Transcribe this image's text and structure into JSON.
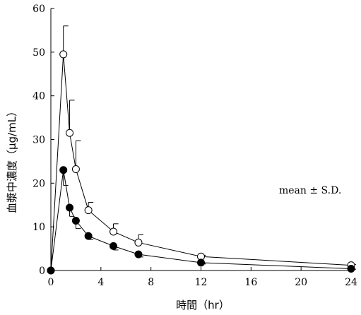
{
  "chart_data": {
    "type": "line",
    "xlabel": "時間（hr）",
    "ylabel": "血漿中濃度（μg/mL）",
    "xlim": [
      0,
      24
    ],
    "ylim": [
      0,
      60
    ],
    "xticks": [
      0,
      4,
      8,
      12,
      16,
      20,
      24
    ],
    "yticks": [
      0,
      10,
      20,
      30,
      40,
      50,
      60
    ],
    "grid": false,
    "annotation": "mean ± S.D.",
    "series": [
      {
        "marker": "open-circle",
        "points": [
          {
            "x": 0,
            "y": 0,
            "sd": 0
          },
          {
            "x": 1,
            "y": 49.5,
            "sd": 6.5
          },
          {
            "x": 1.5,
            "y": 31.5,
            "sd": 7.5
          },
          {
            "x": 2,
            "y": 23.2,
            "sd": 6.5
          },
          {
            "x": 3,
            "y": 13.8,
            "sd": 1.8
          },
          {
            "x": 5,
            "y": 8.9,
            "sd": 1.8
          },
          {
            "x": 7,
            "y": 6.4,
            "sd": 1.8
          },
          {
            "x": 12,
            "y": 3.2,
            "sd": 0.3
          },
          {
            "x": 24,
            "y": 1.2,
            "sd": 0.2
          }
        ]
      },
      {
        "marker": "filled-circle",
        "points": [
          {
            "x": 0,
            "y": 0,
            "sd": 0
          },
          {
            "x": 1,
            "y": 23.0,
            "sd": 3.5
          },
          {
            "x": 1.5,
            "y": 14.4,
            "sd": 2.0
          },
          {
            "x": 2,
            "y": 11.4,
            "sd": 1.8
          },
          {
            "x": 3,
            "y": 7.9,
            "sd": 0.8
          },
          {
            "x": 5,
            "y": 5.6,
            "sd": 0.9
          },
          {
            "x": 7,
            "y": 3.7,
            "sd": 0.6
          },
          {
            "x": 12,
            "y": 1.8,
            "sd": 0.3
          },
          {
            "x": 24,
            "y": 0.4,
            "sd": 0.1
          }
        ]
      }
    ]
  }
}
